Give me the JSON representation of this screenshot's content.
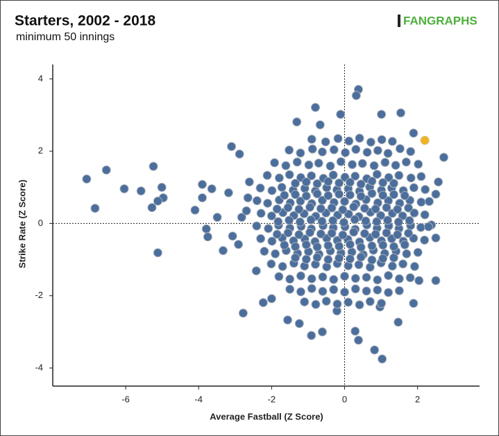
{
  "chart_data": {
    "type": "scatter",
    "title": "Starters, 2002 - 2018",
    "subtitle": "minimum 50 innings",
    "logo": "FANGRAPHS",
    "x_label": "Average Fastball (Z Score)",
    "y_label": "Strike Rate (Z Score)",
    "color": "#4b6e9c",
    "xlim": [
      -8,
      3.7
    ],
    "ylim": [
      -4.5,
      4.4
    ],
    "xticks": [
      -6,
      -4,
      -2,
      0,
      2
    ],
    "yticks": [
      -4,
      -2,
      0,
      2,
      4
    ],
    "reference_lines": true,
    "x": [
      -7.07,
      -6.53,
      -6.84,
      -6.04,
      -5.58,
      -5.24,
      -5.01,
      -4.97,
      -5.12,
      -5.28,
      -5.12,
      -4.1,
      -3.9,
      -3.9,
      -3.64,
      -3.79,
      -3.75,
      -3.49,
      -3.33,
      -3.18,
      -3.1,
      -2.88,
      -2.78,
      -2.82,
      -3.07,
      -2.91,
      -2.69,
      -2.65,
      -2.61,
      -0.8,
      0.38,
      0.32,
      -0.11,
      1.01,
      1.54,
      -0.67,
      -1.31,
      1.89,
      2.72,
      2.57,
      2.5,
      2.38,
      2.5,
      2.5,
      2.04,
      1.89,
      1.47,
      0.82,
      1.03,
      0.38,
      0.29,
      -0.91,
      -0.61,
      -1.24,
      -1.56,
      -2.23,
      -2.0,
      -2.42,
      -0.21,
      0.97,
      -0.9,
      -0.52,
      -0.18,
      0.12,
      0.41,
      0.72,
      1.02,
      1.31,
      -1.52,
      -1.21,
      -0.88,
      -0.61,
      -0.29,
      0.02,
      0.31,
      0.62,
      0.91,
      1.19,
      1.52,
      1.81,
      -1.92,
      -1.61,
      -1.3,
      -0.98,
      -0.71,
      -0.39,
      -0.1,
      0.21,
      0.49,
      0.81,
      1.11,
      1.4,
      1.69,
      2.02,
      -2.12,
      -1.79,
      -1.51,
      -1.2,
      -0.91,
      -0.58,
      -0.31,
      0.01,
      0.29,
      0.61,
      0.89,
      1.21,
      1.49,
      1.82,
      2.1,
      -2.31,
      -1.99,
      -1.72,
      -1.41,
      -1.09,
      -0.8,
      -0.49,
      -0.21,
      0.1,
      0.41,
      0.69,
      1.01,
      1.29,
      1.61,
      1.9,
      2.21,
      -2.4,
      -2.11,
      -1.79,
      -1.49,
      -1.21,
      -0.9,
      -0.61,
      -0.29,
      0.0,
      0.31,
      0.59,
      0.91,
      1.2,
      1.51,
      1.79,
      2.1,
      2.32,
      -2.29,
      -2.0,
      -1.69,
      -1.39,
      -1.11,
      -0.79,
      -0.51,
      -0.19,
      0.11,
      0.39,
      0.71,
      0.99,
      1.31,
      1.59,
      1.91,
      2.2,
      -2.41,
      -2.09,
      -1.81,
      -1.5,
      -1.19,
      -0.91,
      -0.59,
      -0.31,
      0.01,
      0.29,
      0.61,
      0.89,
      1.21,
      1.49,
      1.81,
      2.09,
      2.3,
      -2.3,
      -1.99,
      -1.71,
      -1.4,
      -1.09,
      -0.81,
      -0.49,
      -0.2,
      0.09,
      0.41,
      0.69,
      1.01,
      1.29,
      1.61,
      1.89,
      2.19,
      -2.2,
      -1.9,
      -1.6,
      -1.29,
      -0.99,
      -0.7,
      -0.39,
      -0.1,
      0.2,
      0.51,
      0.79,
      1.1,
      1.41,
      1.7,
      2.01,
      -2.01,
      -1.7,
      -1.39,
      -1.1,
      -0.8,
      -0.49,
      -0.2,
      0.1,
      0.39,
      0.7,
      1.0,
      1.31,
      1.6,
      1.92,
      -1.8,
      -1.5,
      -1.2,
      -0.9,
      -0.6,
      -0.3,
      0.0,
      0.3,
      0.6,
      0.9,
      1.2,
      1.5,
      1.8,
      -1.5,
      -1.2,
      -0.9,
      -0.6,
      -0.3,
      0.0,
      0.3,
      0.6,
      0.9,
      1.2,
      1.5,
      -1.1,
      -0.79,
      -0.5,
      -0.2,
      0.1,
      0.41,
      0.7,
      1.01,
      -1.65,
      -1.35,
      -1.05,
      -0.75,
      -0.45,
      -0.15,
      0.15,
      0.45,
      0.75,
      1.05,
      1.35,
      1.65,
      -1.85,
      -1.55,
      -1.25,
      -0.95,
      -0.65,
      -0.35,
      -0.05,
      0.25,
      0.55,
      0.85,
      1.15,
      1.45,
      1.75,
      -1.82,
      -1.52,
      -1.22,
      -0.92,
      -0.62,
      -0.32,
      -0.02,
      0.28,
      0.58,
      0.88,
      1.18,
      1.48,
      1.78,
      -1.85,
      -1.55,
      -1.25,
      -0.95,
      -0.65,
      -0.35,
      -0.05,
      0.25,
      0.55,
      0.85,
      1.15,
      1.45,
      1.75,
      -1.65,
      -1.35,
      -1.05,
      -0.75,
      -0.45,
      -0.15,
      0.15,
      0.45,
      0.75,
      1.05,
      1.35,
      1.65,
      -1.35,
      -1.05,
      -0.75,
      -0.45,
      -0.15,
      0.15,
      0.45,
      0.75,
      1.05,
      1.35,
      -1.35,
      -1.05,
      -0.75,
      -0.45,
      -0.15,
      0.15,
      0.45,
      0.75,
      1.05,
      1.35
    ],
    "values": [
      1.23,
      1.48,
      0.42,
      0.96,
      0.9,
      1.58,
      1.0,
      0.71,
      0.62,
      0.44,
      -0.81,
      0.37,
      1.08,
      0.71,
      0.96,
      -0.15,
      -0.37,
      0.17,
      -0.75,
      0.85,
      2.13,
      1.92,
      -2.48,
      0.17,
      -0.35,
      -0.58,
      0.35,
      0.71,
      1.15,
      3.21,
      3.71,
      3.54,
      3.02,
      3.02,
      3.06,
      2.73,
      2.81,
      2.5,
      1.83,
      1.15,
      0.81,
      -0.04,
      -0.4,
      -1.58,
      -1.58,
      -2.21,
      -2.73,
      -3.5,
      -3.75,
      -3.23,
      -2.98,
      -3.1,
      -3.0,
      -2.77,
      -2.67,
      -2.19,
      -2.08,
      -1.31,
      -2.42,
      -2.31,
      2.33,
      2.26,
      2.35,
      2.28,
      2.36,
      2.25,
      2.32,
      2.27,
      2.03,
      1.95,
      2.06,
      1.98,
      2.04,
      1.96,
      2.05,
      1.97,
      2.02,
      1.94,
      2.07,
      1.99,
      1.68,
      1.6,
      1.7,
      1.62,
      1.67,
      1.59,
      1.71,
      1.63,
      1.66,
      1.6,
      1.69,
      1.61,
      1.7,
      1.64,
      1.33,
      1.26,
      1.35,
      1.27,
      1.32,
      1.25,
      1.34,
      1.28,
      1.31,
      1.24,
      1.36,
      1.27,
      1.33,
      1.26,
      1.3,
      0.98,
      0.91,
      1.0,
      0.92,
      0.97,
      0.9,
      0.99,
      0.93,
      0.96,
      0.89,
      1.01,
      0.92,
      0.98,
      0.91,
      0.99,
      0.94,
      0.63,
      0.56,
      0.65,
      0.57,
      0.62,
      0.55,
      0.64,
      0.58,
      0.61,
      0.54,
      0.66,
      0.57,
      0.63,
      0.56,
      0.64,
      0.59,
      0.61,
      0.28,
      0.21,
      0.3,
      0.22,
      0.27,
      0.2,
      0.29,
      0.23,
      0.26,
      0.19,
      0.31,
      0.22,
      0.28,
      0.21,
      0.29,
      0.24,
      -0.07,
      -0.14,
      -0.05,
      -0.13,
      -0.08,
      -0.15,
      -0.06,
      -0.12,
      -0.09,
      -0.16,
      -0.04,
      -0.13,
      -0.07,
      -0.14,
      -0.06,
      -0.11,
      -0.09,
      -0.42,
      -0.49,
      -0.4,
      -0.48,
      -0.43,
      -0.5,
      -0.41,
      -0.47,
      -0.44,
      -0.51,
      -0.39,
      -0.48,
      -0.42,
      -0.49,
      -0.41,
      -0.46,
      -0.77,
      -0.84,
      -0.75,
      -0.83,
      -0.78,
      -0.85,
      -0.76,
      -0.82,
      -0.79,
      -0.86,
      -0.74,
      -0.83,
      -0.77,
      -0.84,
      -0.8,
      -1.12,
      -1.19,
      -1.1,
      -1.18,
      -1.13,
      -1.2,
      -1.11,
      -1.17,
      -1.14,
      -1.21,
      -1.09,
      -1.18,
      -1.12,
      -1.19,
      -1.47,
      -1.54,
      -1.45,
      -1.53,
      -1.48,
      -1.55,
      -1.46,
      -1.52,
      -1.49,
      -1.56,
      -1.44,
      -1.53,
      -1.5,
      -1.82,
      -1.89,
      -1.8,
      -1.88,
      -1.83,
      -1.9,
      -1.81,
      -1.87,
      -1.84,
      -1.91,
      -1.86,
      -2.17,
      -2.24,
      -2.15,
      -2.23,
      -2.18,
      -2.25,
      -2.16,
      -2.21,
      0.78,
      0.8,
      0.76,
      0.82,
      0.77,
      0.81,
      0.79,
      0.75,
      0.83,
      0.78,
      0.8,
      0.77,
      0.4,
      0.44,
      0.39,
      0.45,
      0.41,
      0.43,
      0.38,
      0.46,
      0.42,
      0.4,
      0.44,
      0.39,
      0.43,
      0.05,
      0.09,
      0.04,
      0.1,
      0.06,
      0.08,
      0.03,
      0.11,
      0.07,
      0.05,
      0.09,
      0.04,
      0.08,
      -0.3,
      -0.26,
      -0.31,
      -0.25,
      -0.29,
      -0.27,
      -0.32,
      -0.24,
      -0.28,
      -0.3,
      -0.26,
      -0.31,
      -0.27,
      -0.6,
      -0.64,
      -0.59,
      -0.65,
      -0.61,
      -0.63,
      -0.58,
      -0.66,
      -0.62,
      -0.6,
      -0.64,
      -0.59,
      -0.95,
      -0.99,
      -0.94,
      -1.0,
      -0.96,
      -0.98,
      -0.93,
      -1.01,
      -0.97,
      -0.95,
      1.11,
      1.15,
      1.1,
      1.16,
      1.12,
      1.14,
      1.09,
      1.17,
      1.13,
      1.11
    ],
    "highlight": {
      "x": 2.2,
      "y": 2.3,
      "color": "#f0b323"
    }
  }
}
